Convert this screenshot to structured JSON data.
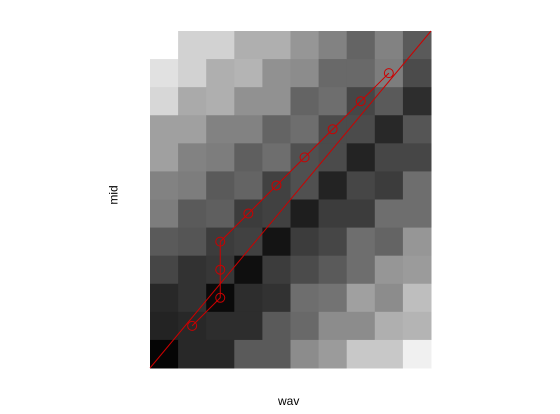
{
  "chart_data": {
    "type": "heatmap",
    "title": "",
    "xlabel": "wav",
    "ylabel": "mid",
    "xlim": [
      0,
      10
    ],
    "ylim": [
      0,
      12
    ],
    "cell_gray_rows_top_to_bottom": [
      [
        255,
        210,
        210,
        175,
        175,
        150,
        130,
        100,
        130,
        90
      ],
      [
        225,
        210,
        175,
        180,
        145,
        140,
        105,
        105,
        125,
        75
      ],
      [
        215,
        170,
        175,
        145,
        145,
        100,
        110,
        70,
        90,
        45
      ],
      [
        160,
        160,
        130,
        130,
        100,
        110,
        75,
        75,
        40,
        85
      ],
      [
        160,
        130,
        125,
        95,
        110,
        80,
        75,
        35,
        70,
        70
      ],
      [
        130,
        125,
        90,
        100,
        65,
        80,
        35,
        70,
        60,
        110
      ],
      [
        125,
        90,
        95,
        60,
        65,
        30,
        60,
        60,
        110,
        110
      ],
      [
        90,
        85,
        60,
        65,
        20,
        60,
        70,
        110,
        100,
        150
      ],
      [
        70,
        50,
        55,
        15,
        60,
        75,
        90,
        110,
        150,
        155
      ],
      [
        40,
        50,
        10,
        45,
        50,
        110,
        115,
        160,
        140,
        190
      ],
      [
        35,
        40,
        45,
        45,
        90,
        105,
        140,
        140,
        175,
        180
      ],
      [
        5,
        40,
        40,
        90,
        90,
        140,
        155,
        200,
        200,
        240
      ]
    ],
    "reference_line": {
      "color": "#cc0000",
      "from": [
        0,
        0
      ],
      "to": [
        10,
        12
      ]
    },
    "path_points": [
      [
        1.5,
        1.5
      ],
      [
        2.5,
        2.5
      ],
      [
        2.5,
        3.5
      ],
      [
        2.5,
        4.5
      ],
      [
        3.5,
        5.5
      ],
      [
        4.5,
        6.5
      ],
      [
        5.5,
        7.5
      ],
      [
        6.5,
        8.5
      ],
      [
        7.5,
        9.5
      ],
      [
        8.5,
        10.5
      ]
    ],
    "path_color": "#cc0000"
  }
}
